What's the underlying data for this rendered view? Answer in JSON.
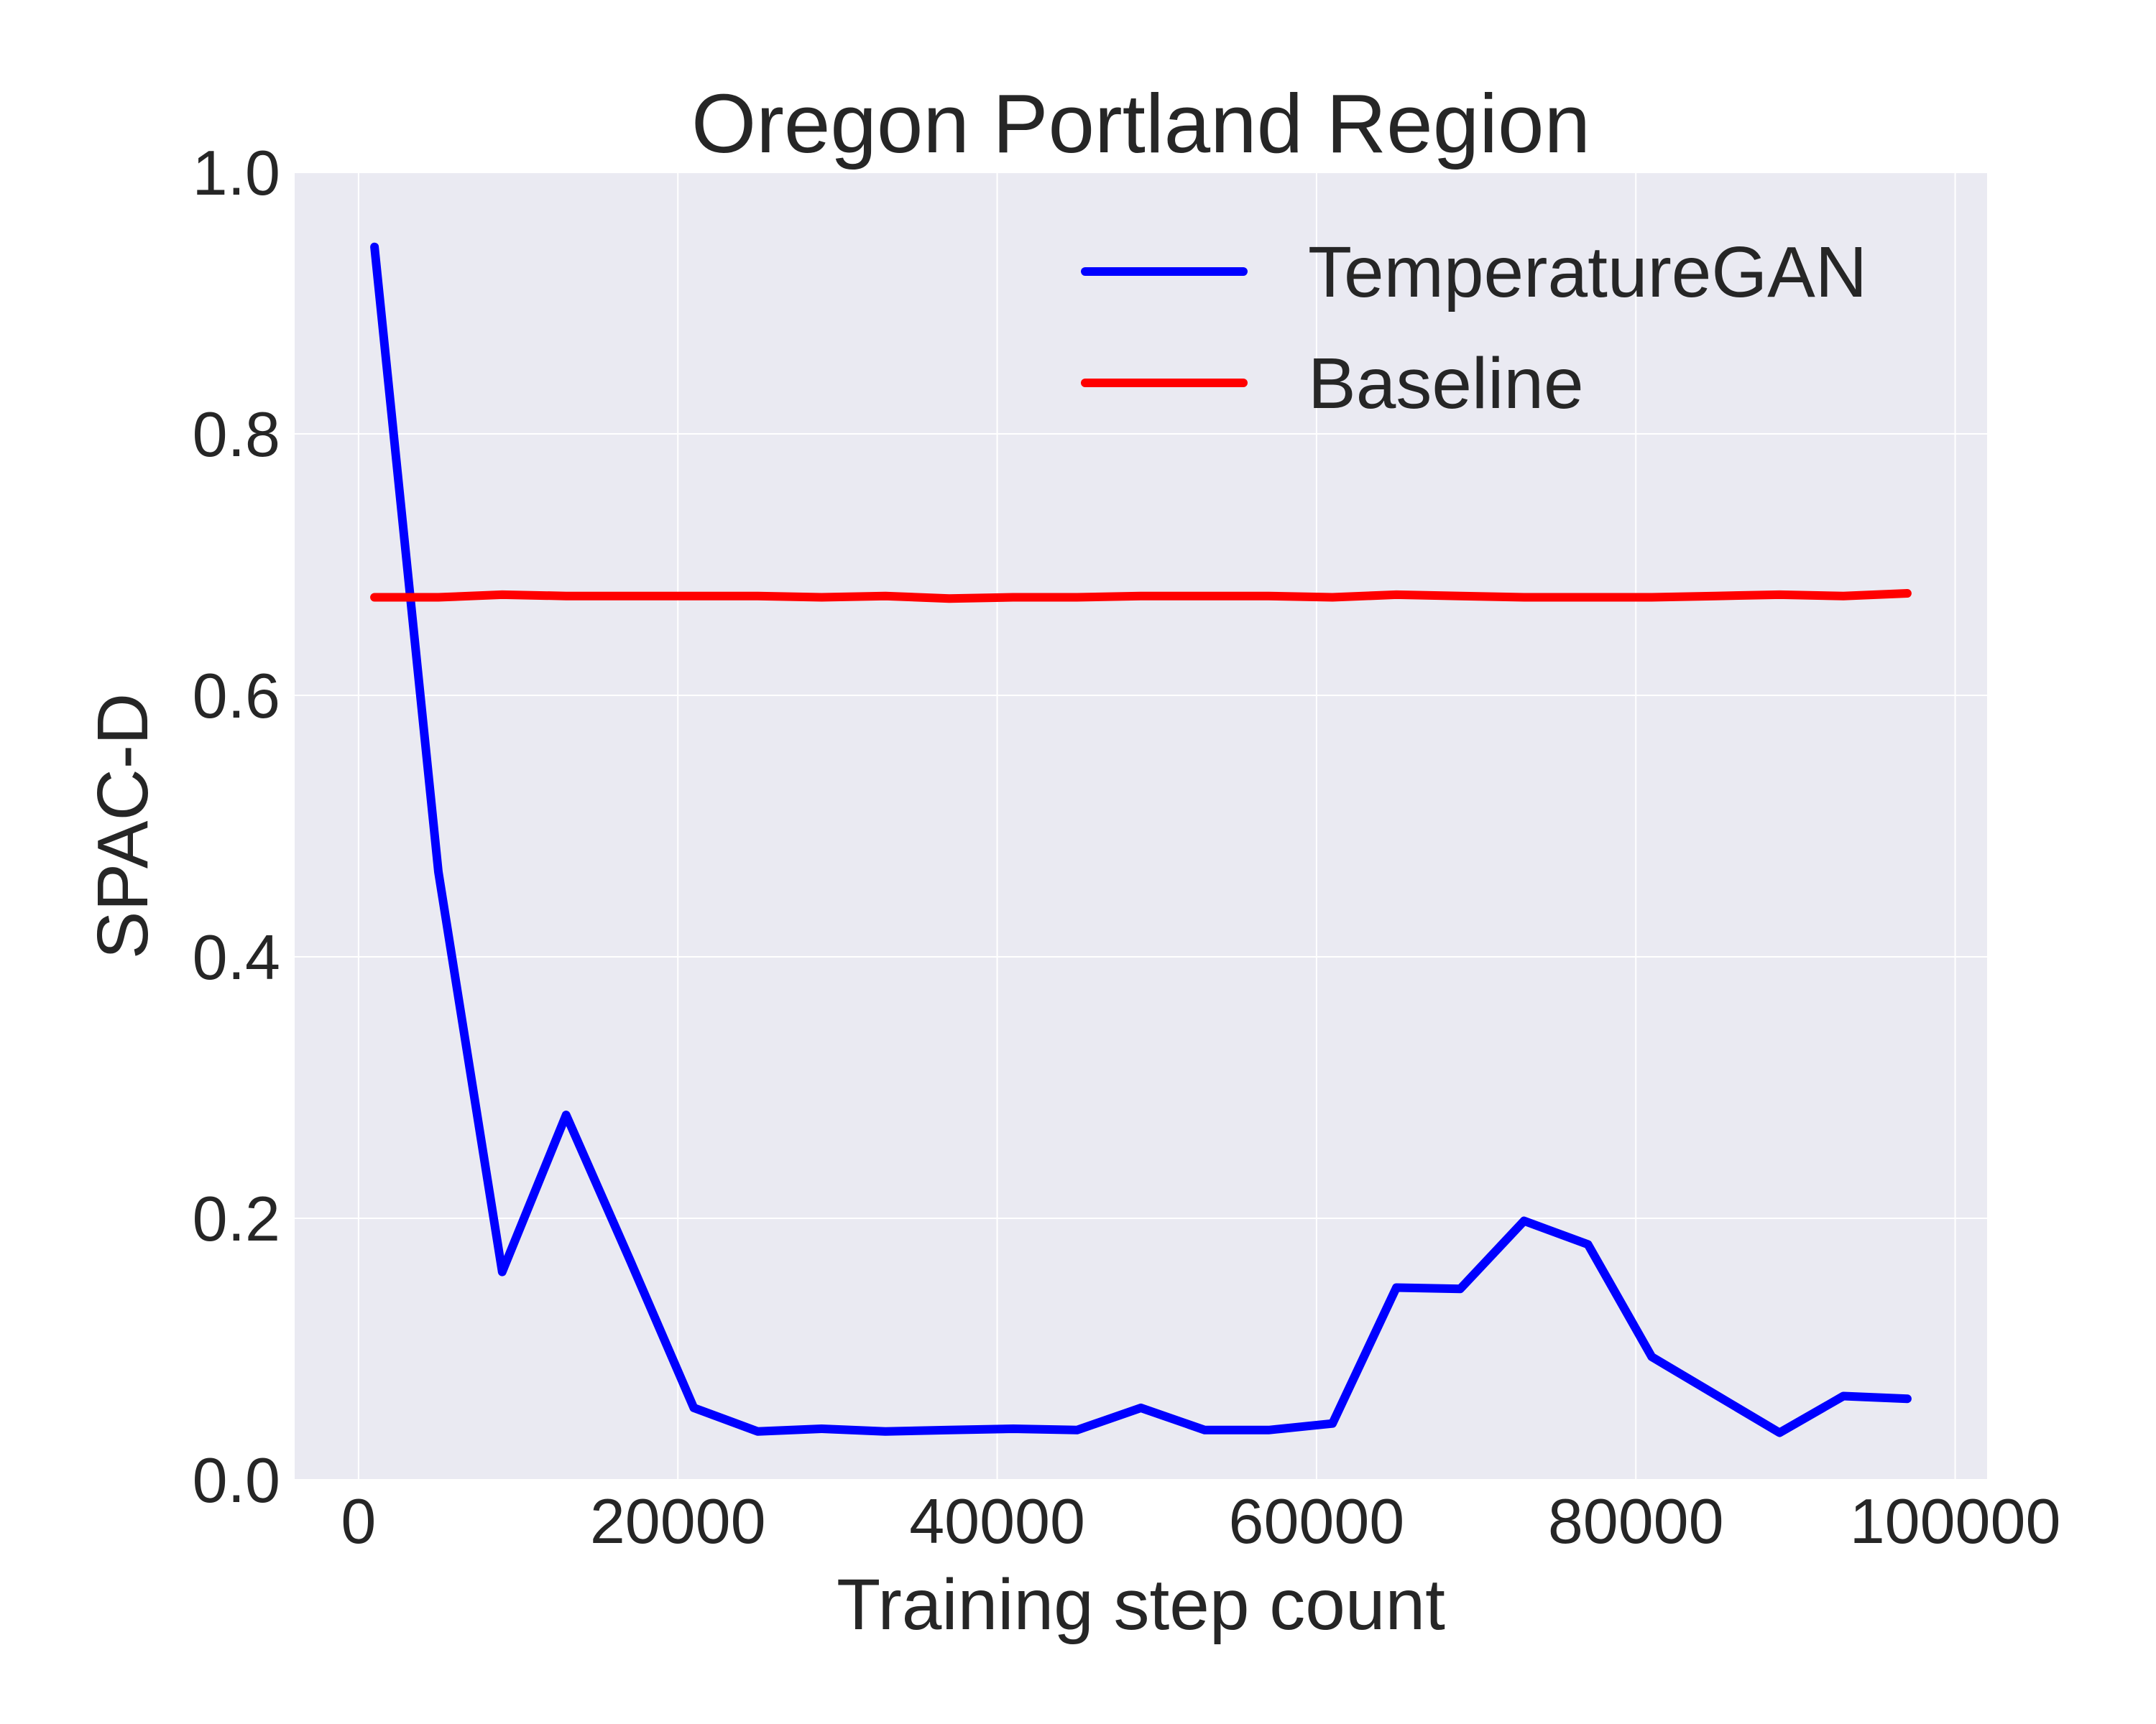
{
  "chart_data": {
    "type": "line",
    "title": "Oregon Portland Region",
    "xlabel": "Training step count",
    "ylabel": "SPAC-D",
    "xlim": [
      -4000,
      102000
    ],
    "ylim": [
      0.0,
      1.0
    ],
    "xticks": [
      0,
      20000,
      40000,
      60000,
      80000,
      100000
    ],
    "xtick_labels": [
      "0",
      "20000",
      "40000",
      "60000",
      "80000",
      "100000"
    ],
    "yticks": [
      0.0,
      0.2,
      0.4,
      0.6,
      0.8,
      1.0
    ],
    "ytick_labels": [
      "0.0",
      "0.2",
      "0.4",
      "0.6",
      "0.8",
      "1.0"
    ],
    "grid": true,
    "legend_position": "top-right",
    "background": "#eaeaf2",
    "x": [
      1000,
      5000,
      9000,
      13000,
      17000,
      21000,
      25000,
      29000,
      33000,
      37000,
      41000,
      45000,
      49000,
      53000,
      57000,
      61000,
      65000,
      69000,
      73000,
      77000,
      81000,
      85000,
      89000,
      93000,
      97000
    ],
    "series": [
      {
        "name": "TemperatureGAN",
        "color": "#0000ff",
        "values": [
          0.943,
          0.465,
          0.159,
          0.279,
          0.168,
          0.055,
          0.037,
          0.039,
          0.037,
          0.038,
          0.039,
          0.038,
          0.055,
          0.038,
          0.038,
          0.043,
          0.147,
          0.146,
          0.198,
          0.18,
          0.094,
          0.065,
          0.036,
          0.064,
          0.062
        ]
      },
      {
        "name": "Baseline",
        "color": "#ff0000",
        "values": [
          0.675,
          0.675,
          0.677,
          0.676,
          0.676,
          0.676,
          0.676,
          0.675,
          0.676,
          0.674,
          0.675,
          0.675,
          0.676,
          0.676,
          0.676,
          0.675,
          0.677,
          0.676,
          0.675,
          0.675,
          0.675,
          0.676,
          0.677,
          0.676,
          0.678
        ]
      }
    ]
  }
}
